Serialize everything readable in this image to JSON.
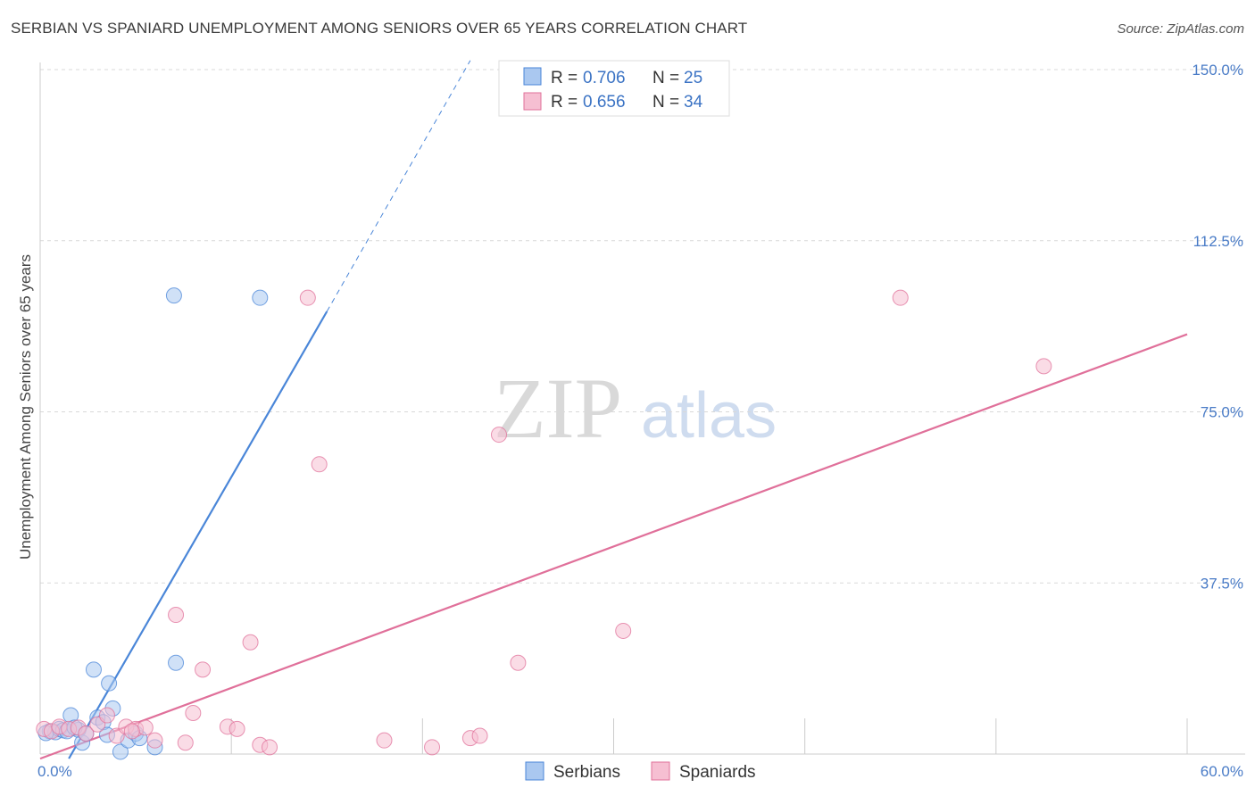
{
  "title": "SERBIAN VS SPANIARD UNEMPLOYMENT AMONG SENIORS OVER 65 YEARS CORRELATION CHART",
  "source": "Source: ZipAtlas.com",
  "watermark": {
    "zip": "ZIP",
    "atlas": "atlas"
  },
  "chart_data": {
    "type": "scatter",
    "title": "SERBIAN VS SPANIARD UNEMPLOYMENT AMONG SENIORS OVER 65 YEARS CORRELATION CHART",
    "xlabel": "",
    "ylabel": "Unemployment Among Seniors over 65 years",
    "xlim": [
      0,
      60
    ],
    "ylim": [
      0,
      150
    ],
    "x_tick_labels": {
      "min": "0.0%",
      "max": "60.0%"
    },
    "y_ticks": [
      {
        "value": 37.5,
        "label": "37.5%"
      },
      {
        "value": 75.0,
        "label": "75.0%"
      },
      {
        "value": 112.5,
        "label": "112.5%"
      },
      {
        "value": 150.0,
        "label": "150.0%"
      }
    ],
    "x_gridlines": [
      10,
      20,
      30,
      40,
      50,
      60
    ],
    "legend_position": "top-center",
    "series": [
      {
        "name": "Serbians",
        "color": "#4a86d8",
        "fill": "#aac8f0",
        "R": "0.706",
        "N": "25",
        "trend": {
          "x0": 1.5,
          "y0": -1,
          "x1": 15,
          "y1": 97,
          "dash_x1": 22.5,
          "dash_y1": 152
        },
        "points": [
          [
            0.5,
            5.0
          ],
          [
            0.8,
            4.8
          ],
          [
            1.0,
            5.5
          ],
          [
            1.2,
            5.2
          ],
          [
            1.4,
            5.0
          ],
          [
            1.6,
            8.5
          ],
          [
            2.0,
            5.3
          ],
          [
            2.2,
            2.5
          ],
          [
            2.4,
            4.5
          ],
          [
            2.8,
            18.5
          ],
          [
            3.0,
            8.0
          ],
          [
            3.3,
            7.0
          ],
          [
            3.6,
            15.5
          ],
          [
            3.8,
            10.0
          ],
          [
            4.2,
            0.5
          ],
          [
            4.6,
            3.0
          ],
          [
            5.0,
            4.5
          ],
          [
            5.2,
            3.5
          ],
          [
            6.0,
            1.5
          ],
          [
            7.0,
            100.5
          ],
          [
            7.1,
            20.0
          ],
          [
            11.5,
            100.0
          ],
          [
            0.3,
            4.6
          ],
          [
            1.8,
            5.8
          ],
          [
            3.5,
            4.2
          ]
        ]
      },
      {
        "name": "Spaniards",
        "color": "#e0709a",
        "fill": "#f6bfd2",
        "R": "0.656",
        "N": "34",
        "trend": {
          "x0": 0,
          "y0": -1,
          "x1": 60,
          "y1": 92
        },
        "points": [
          [
            0.2,
            5.5
          ],
          [
            0.6,
            5.0
          ],
          [
            1.0,
            6.0
          ],
          [
            1.5,
            5.5
          ],
          [
            2.0,
            5.8
          ],
          [
            2.4,
            4.5
          ],
          [
            3.0,
            6.5
          ],
          [
            3.5,
            8.5
          ],
          [
            4.0,
            4.0
          ],
          [
            4.5,
            6.0
          ],
          [
            5.0,
            5.5
          ],
          [
            5.5,
            5.8
          ],
          [
            6.0,
            3.0
          ],
          [
            7.1,
            30.5
          ],
          [
            7.6,
            2.5
          ],
          [
            8.0,
            9.0
          ],
          [
            8.5,
            18.5
          ],
          [
            9.8,
            6.0
          ],
          [
            10.3,
            5.5
          ],
          [
            11.0,
            24.5
          ],
          [
            11.5,
            2.0
          ],
          [
            12.0,
            1.5
          ],
          [
            14.0,
            100.0
          ],
          [
            14.6,
            63.5
          ],
          [
            18.0,
            3.0
          ],
          [
            20.5,
            1.5
          ],
          [
            22.5,
            3.5
          ],
          [
            23.0,
            4.0
          ],
          [
            24.0,
            70.0
          ],
          [
            25.0,
            20.0
          ],
          [
            30.5,
            27.0
          ],
          [
            45.0,
            100.0
          ],
          [
            52.5,
            85.0
          ],
          [
            4.8,
            5.0
          ]
        ]
      }
    ]
  }
}
